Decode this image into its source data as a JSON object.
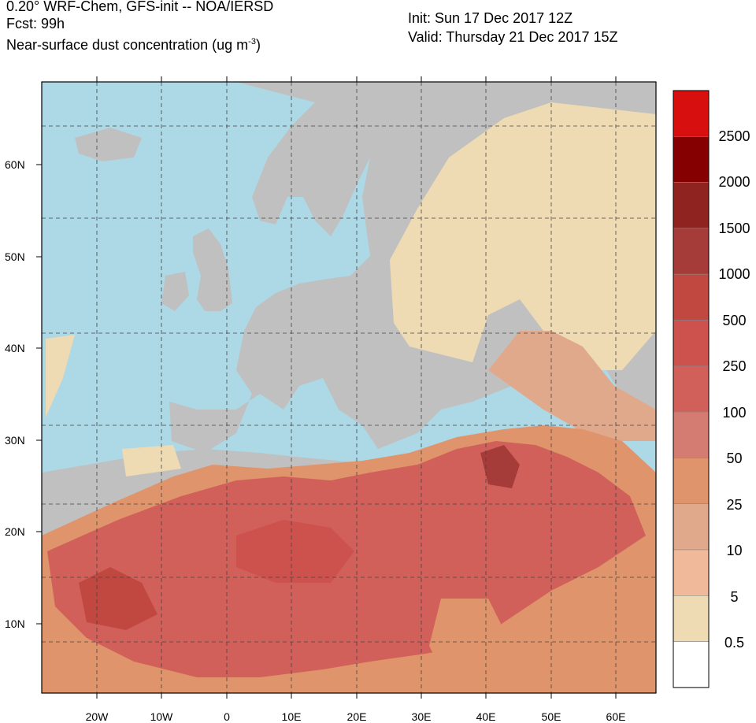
{
  "header": {
    "title_line1": "0.20° WRF-Chem, GFS-init -- NOA/IERSD",
    "title_line2": "Fcst: 99h",
    "title_line3_prefix": "Near-surface dust concentration (ug m",
    "title_line3_sup": "-3",
    "title_line3_suffix": ")",
    "init": "Init: Sun 17 Dec 2017  12Z",
    "valid": "Valid: Thursday 21 Dec 2017  15Z"
  },
  "map": {
    "ocean_color": "#add8e6",
    "land_color": "#c0c0c0",
    "lat_labels": [
      "60N",
      "50N",
      "40N",
      "30N",
      "20N",
      "10N"
    ],
    "lon_labels": [
      "20W",
      "10W",
      "0",
      "10E",
      "20E",
      "30E",
      "40E",
      "50E",
      "60E"
    ]
  },
  "colorbar": {
    "labels": [
      "2500",
      "2000",
      "1500",
      "1000",
      "500",
      "250",
      "100",
      "50",
      "25",
      "10",
      "5",
      "0.5"
    ],
    "colors": [
      "#d7100f",
      "#850000",
      "#8e2320",
      "#a53c3a",
      "#c14840",
      "#cd514d",
      "#d2605a",
      "#d47b72",
      "#df946b",
      "#e0a98b",
      "#efb99a",
      "#eedbb3",
      "#ffffff"
    ]
  }
}
